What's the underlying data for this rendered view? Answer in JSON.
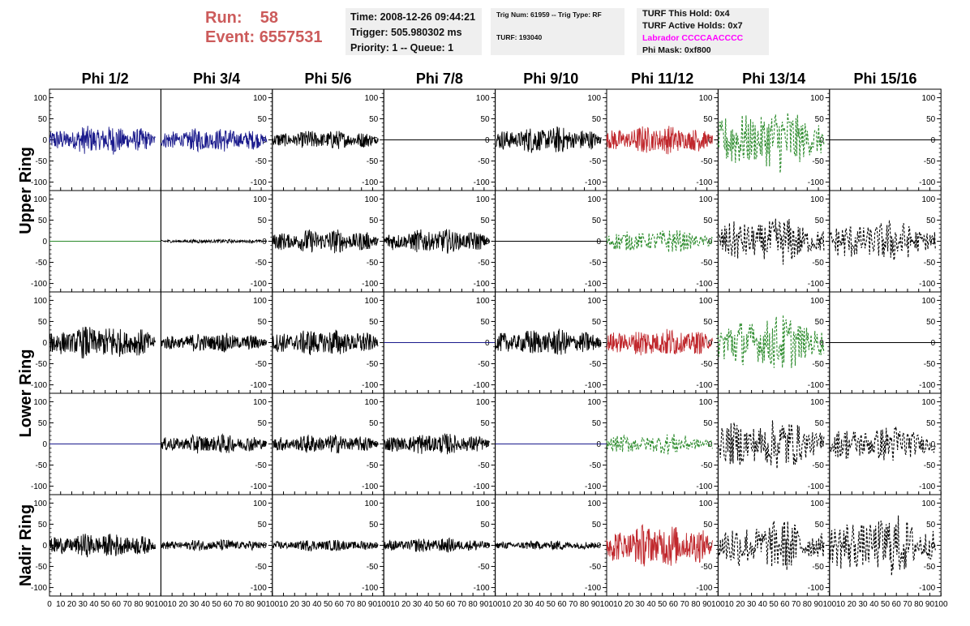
{
  "header": {
    "run_label": "Run:",
    "run_value": "58",
    "event_label": "Event:",
    "event_value": "6557531",
    "time": "Time: 2008-12-26 09:44:21",
    "trigger": "Trigger: 505.980302 ms",
    "priority": "Priority: 1 -- Queue: 1",
    "trig_num": "Trig Num: 61959 -- Trig Type: RF",
    "turf": "TURF: 193040",
    "turf_this_hold": "TURF This Hold: 0x4",
    "turf_active_holds": "TURF Active Holds: 0x7",
    "labrador": "Labrador CCCCAACCCC",
    "phi_mask": "Phi Mask: 0xf800"
  },
  "colors": {
    "header_red": "#cc5b5b",
    "labrador_magenta": "#ff00ff",
    "panel_bg": "#efefef",
    "trace_blue": "#1a1a8c",
    "trace_red": "#c0282d",
    "trace_green": "#2a8a2a",
    "trace_black": "#000000"
  },
  "chart_data": {
    "type": "line",
    "columns": [
      "Phi 1/2",
      "Phi 3/4",
      "Phi 5/6",
      "Phi 7/8",
      "Phi 9/10",
      "Phi 11/12",
      "Phi 13/14",
      "Phi 15/16"
    ],
    "rows": [
      "Upper Ring",
      "Upper Ring",
      "Lower Ring",
      "Lower Ring",
      "Nadir Ring"
    ],
    "row_labels": [
      "Upper Ring",
      "Lower Ring",
      "Nadir Ring"
    ],
    "xlim": [
      0,
      100
    ],
    "ylim": [
      -120,
      120
    ],
    "y_ticks": [
      100,
      50,
      0,
      -50,
      -100
    ],
    "x_ticks": [
      0,
      10,
      20,
      30,
      40,
      50,
      60,
      70,
      80,
      90,
      100
    ],
    "x_tick_labels": [
      "0",
      "10",
      "20",
      "30",
      "40",
      "50",
      "60",
      "70",
      "80",
      "90",
      "100"
    ],
    "traces": [
      [
        {
          "color": "blue",
          "style": "solid",
          "amp": 30
        },
        {
          "color": "blue",
          "style": "solid",
          "amp": 25
        },
        {
          "color": "black",
          "style": "solid",
          "amp": 20
        },
        {
          "color": "black",
          "style": "flat",
          "amp": 0
        },
        {
          "color": "black",
          "style": "solid",
          "amp": 28
        },
        {
          "color": "red",
          "style": "solid",
          "amp": 30
        },
        {
          "color": "green",
          "style": "dashed",
          "amp": 70
        },
        {
          "color": "black",
          "style": "flat",
          "amp": 0
        }
      ],
      [
        {
          "color": "green",
          "style": "flat",
          "amp": 0
        },
        {
          "color": "black",
          "style": "solid",
          "amp": 4
        },
        {
          "color": "black",
          "style": "solid",
          "amp": 25
        },
        {
          "color": "black",
          "style": "solid",
          "amp": 25
        },
        {
          "color": "black",
          "style": "flat",
          "amp": 0
        },
        {
          "color": "green",
          "style": "dashed",
          "amp": 25
        },
        {
          "color": "black",
          "style": "dashed",
          "amp": 50
        },
        {
          "color": "black",
          "style": "dashed",
          "amp": 45
        }
      ],
      [
        {
          "color": "black",
          "style": "solid",
          "amp": 35
        },
        {
          "color": "black",
          "style": "solid",
          "amp": 20
        },
        {
          "color": "black",
          "style": "solid",
          "amp": 28
        },
        {
          "color": "blue",
          "style": "flat",
          "amp": 0
        },
        {
          "color": "black",
          "style": "solid",
          "amp": 28
        },
        {
          "color": "red",
          "style": "solid",
          "amp": 30
        },
        {
          "color": "green",
          "style": "dashed",
          "amp": 60
        },
        {
          "color": "black",
          "style": "flat",
          "amp": 0
        }
      ],
      [
        {
          "color": "blue",
          "style": "flat",
          "amp": 0
        },
        {
          "color": "black",
          "style": "solid",
          "amp": 20
        },
        {
          "color": "black",
          "style": "solid",
          "amp": 20
        },
        {
          "color": "black",
          "style": "solid",
          "amp": 22
        },
        {
          "color": "blue",
          "style": "flat",
          "amp": 0
        },
        {
          "color": "green",
          "style": "dashed",
          "amp": 22
        },
        {
          "color": "black",
          "style": "dashed",
          "amp": 55
        },
        {
          "color": "black",
          "style": "dashed",
          "amp": 40
        }
      ],
      [
        {
          "color": "black",
          "style": "solid",
          "amp": 25
        },
        {
          "color": "black",
          "style": "solid",
          "amp": 12
        },
        {
          "color": "black",
          "style": "solid",
          "amp": 12
        },
        {
          "color": "black",
          "style": "solid",
          "amp": 15
        },
        {
          "color": "black",
          "style": "solid",
          "amp": 10
        },
        {
          "color": "red",
          "style": "solid",
          "amp": 45
        },
        {
          "color": "black",
          "style": "dashed",
          "amp": 55
        },
        {
          "color": "black",
          "style": "dashed",
          "amp": 65
        }
      ]
    ]
  }
}
